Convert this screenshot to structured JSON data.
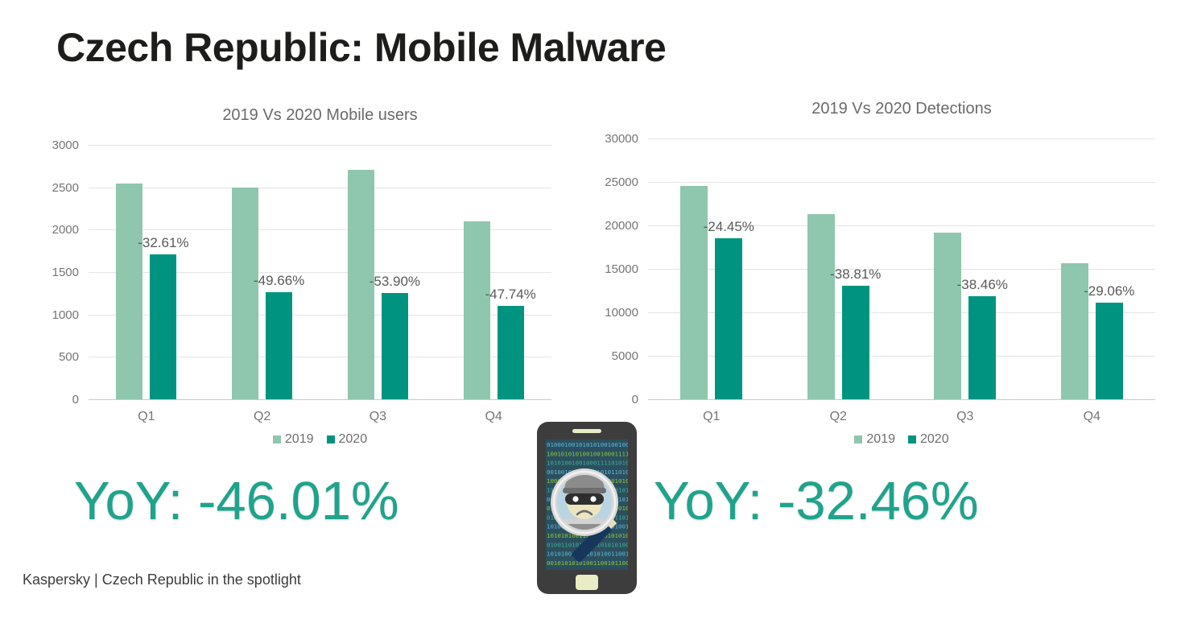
{
  "page": {
    "title": "Czech Republic: Mobile Malware",
    "footer": "Kaspersky | Czech Republic in the spotlight"
  },
  "yoy": {
    "left_label": "YoY: -46.01%",
    "right_label": "YoY: -32.46%",
    "color": "#1FA38C"
  },
  "palette": {
    "series_2019": "#8FC6AE",
    "series_2020": "#009480",
    "grid": "#E4E4E4",
    "axis_text": "#757575",
    "chart_title_text": "#6A6A6A",
    "bar_label_text": "#595959",
    "slide_title_text": "#1D1D1B"
  },
  "chart_data": [
    {
      "type": "bar",
      "title": "2019 Vs 2020 Mobile users",
      "categories": [
        "Q1",
        "Q2",
        "Q3",
        "Q4"
      ],
      "series": [
        {
          "name": "2019",
          "color": "#8FC6AE",
          "values": [
            2540,
            2500,
            2710,
            2100
          ]
        },
        {
          "name": "2020",
          "color": "#009480",
          "values": [
            1712,
            1259,
            1249,
            1097
          ]
        }
      ],
      "bar_labels": [
        "-32.61%",
        "-49.66%",
        "-53.90%",
        "-47.74%"
      ],
      "ylim": [
        0,
        3000
      ],
      "yticks": [
        0,
        500,
        1000,
        1500,
        2000,
        2500,
        3000
      ],
      "grid": true,
      "legend_position": "bottom"
    },
    {
      "type": "bar",
      "title": "2019 Vs 2020 Detections",
      "categories": [
        "Q1",
        "Q2",
        "Q3",
        "Q4"
      ],
      "series": [
        {
          "name": "2019",
          "color": "#8FC6AE",
          "values": [
            24500,
            21300,
            19200,
            15650
          ]
        },
        {
          "name": "2020",
          "color": "#009480",
          "values": [
            18510,
            13030,
            11815,
            11100
          ]
        }
      ],
      "bar_labels": [
        "-24.45%",
        "-38.81%",
        "-38.46%",
        "-29.06%"
      ],
      "ylim": [
        0,
        30000
      ],
      "yticks": [
        0,
        5000,
        10000,
        15000,
        20000,
        25000,
        30000
      ],
      "grid": true,
      "legend_position": "bottom"
    }
  ],
  "phone_graphic": {
    "icon": "mobile-malware-magnifier-illustration",
    "binary_pattern": "010001001010101001001000111101010110100101010101001010101001101010010101010100110010110",
    "binary_colors": [
      "#5fb6d8",
      "#8dc63f",
      "#3fae96"
    ]
  }
}
